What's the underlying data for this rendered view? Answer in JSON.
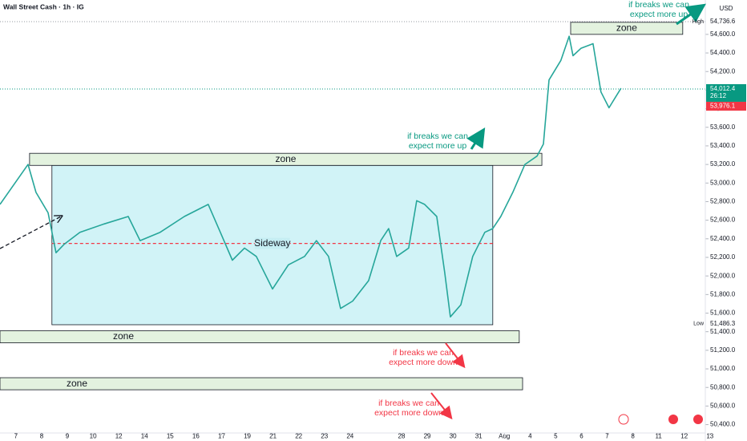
{
  "chart_data": {
    "type": "line",
    "title": "Wall Street Cash · 1h · IG",
    "currency": "USD",
    "color": "#26a69a",
    "x": [
      -0.62,
      0.47,
      0.78,
      1.25,
      1.56,
      1.87,
      2.49,
      3.43,
      4.37,
      4.83,
      5.61,
      6.55,
      7.48,
      7.95,
      8.42,
      8.89,
      9.35,
      9.98,
      10.6,
      11.23,
      11.69,
      12.16,
      12.63,
      13.1,
      13.72,
      14.19,
      14.5,
      14.81,
      15.28,
      15.59,
      15.9,
      16.37,
      16.68,
      16.9,
      17.31,
      17.77,
      18.24,
      18.55,
      18.86,
      19.33,
      19.8,
      20.27,
      20.52,
      20.74,
      21.2,
      21.52,
      21.67,
      21.98,
      22.45,
      22.76,
      23.07,
      23.54
    ],
    "values": [
      52770,
      53200,
      52900,
      52680,
      52250,
      52340,
      52470,
      52560,
      52640,
      52380,
      52470,
      52640,
      52770,
      52470,
      52170,
      52300,
      52210,
      51860,
      52120,
      52210,
      52380,
      52210,
      51650,
      51730,
      51950,
      52380,
      52510,
      52210,
      52300,
      52810,
      52770,
      52640,
      52040,
      51560,
      51690,
      52210,
      52470,
      52510,
      52640,
      52900,
      53200,
      53290,
      53420,
      54110,
      54320,
      54580,
      54370,
      54450,
      54500,
      53980,
      53810,
      54020
    ],
    "xlim": [
      -0.62,
      28.44
    ],
    "xticks": [
      {
        "value": 0,
        "label": "7"
      },
      {
        "value": 1,
        "label": "8"
      },
      {
        "value": 2,
        "label": "9"
      },
      {
        "value": 3,
        "label": "10"
      },
      {
        "value": 4,
        "label": "12"
      },
      {
        "value": 5,
        "label": "14"
      },
      {
        "value": 6,
        "label": "15"
      },
      {
        "value": 7,
        "label": "16"
      },
      {
        "value": 8,
        "label": "17"
      },
      {
        "value": 9,
        "label": "19"
      },
      {
        "value": 10,
        "label": "21"
      },
      {
        "value": 11,
        "label": "22"
      },
      {
        "value": 12,
        "label": "23"
      },
      {
        "value": 13,
        "label": "24"
      },
      {
        "value": 15,
        "label": "28"
      },
      {
        "value": 16,
        "label": "29"
      },
      {
        "value": 17,
        "label": "30"
      },
      {
        "value": 18,
        "label": "31"
      },
      {
        "value": 19,
        "label": "Aug"
      },
      {
        "value": 20,
        "label": "4"
      },
      {
        "value": 21,
        "label": "5"
      },
      {
        "value": 22,
        "label": "6"
      },
      {
        "value": 23,
        "label": "7"
      },
      {
        "value": 24,
        "label": "8"
      },
      {
        "value": 25,
        "label": "11"
      },
      {
        "value": 26,
        "label": "12"
      },
      {
        "value": 27,
        "label": "13"
      }
    ],
    "ylim": [
      50310,
      54970
    ],
    "yticks": [
      {
        "value": 50400,
        "label": "50,400.0"
      },
      {
        "value": 50600,
        "label": "50,600.0"
      },
      {
        "value": 50800,
        "label": "50,800.0"
      },
      {
        "value": 51000,
        "label": "51,000.0"
      },
      {
        "value": 51200,
        "label": "51,200.0"
      },
      {
        "value": 51400,
        "label": "51,400.0"
      },
      {
        "value": 51600,
        "label": "51,600.0"
      },
      {
        "value": 51800,
        "label": "51,800.0"
      },
      {
        "value": 52000,
        "label": "52,000.0"
      },
      {
        "value": 52200,
        "label": "52,200.0"
      },
      {
        "value": 52400,
        "label": "52,400.0"
      },
      {
        "value": 52600,
        "label": "52,600.0"
      },
      {
        "value": 52800,
        "label": "52,800.0"
      },
      {
        "value": 53000,
        "label": "53,000.0"
      },
      {
        "value": 53200,
        "label": "53,200.0"
      },
      {
        "value": 53400,
        "label": "53,400.0"
      },
      {
        "value": 53600,
        "label": "53,600.0"
      },
      {
        "value": 53800,
        "label": "53,800.0"
      },
      {
        "value": 54000,
        "label": "54,000.0"
      },
      {
        "value": 54200,
        "label": "54,200.0"
      },
      {
        "value": 54400,
        "label": "54,400.0"
      },
      {
        "value": 54600,
        "label": "54,600.0"
      }
    ],
    "high": {
      "name": "High",
      "value": 54736.6,
      "label": "54,736.6"
    },
    "low": {
      "name": "Low",
      "value": 51486.3,
      "label": "51,486.3"
    },
    "last": {
      "value": 54012.4,
      "label": "54,012.4",
      "countdown": "26:12",
      "color": "#089981"
    },
    "bid": {
      "value": 53976.1,
      "label": "53,976.1",
      "color": "#f23645"
    },
    "zones": [
      {
        "label": "zone",
        "x": [
          21.58,
          25.94
        ],
        "y": [
          54600,
          54730
        ]
      },
      {
        "label": "zone",
        "x": [
          0.53,
          20.46
        ],
        "y": [
          53190,
          53320
        ]
      },
      {
        "label": "zone",
        "x": [
          -0.62,
          19.58
        ],
        "y": [
          51280,
          51410
        ]
      },
      {
        "label": "zone",
        "x": [
          -0.62,
          19.71
        ],
        "y": [
          50775,
          50905
        ]
      }
    ],
    "range_box": {
      "label": "Sideway",
      "x": [
        1.4,
        18.55
      ],
      "y": [
        51475,
        53190
      ],
      "mid": 52350
    },
    "annotations": [
      {
        "lines": [
          "if breaks we can",
          "expect more up"
        ],
        "color": "#089981"
      },
      {
        "lines": [
          "if breaks we can",
          "expect more up"
        ],
        "color": "#089981"
      },
      {
        "lines": [
          "if breaks we can",
          "expect more down"
        ],
        "color": "#f23645"
      },
      {
        "lines": [
          "if breaks we can",
          "expect more down"
        ],
        "color": "#f23645"
      }
    ]
  }
}
